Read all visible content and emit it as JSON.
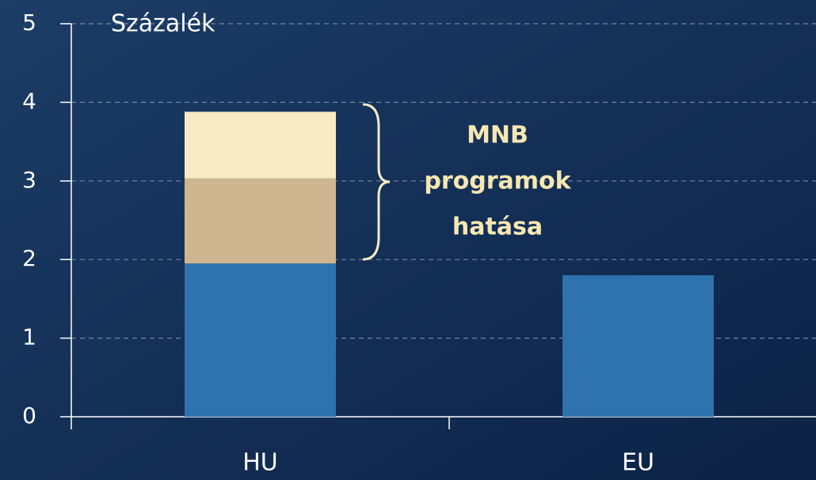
{
  "chart_data": {
    "type": "stacked_bar",
    "y_label": "Százalék",
    "categories": [
      "HU",
      "EU"
    ],
    "series": [
      {
        "color": "#2e73ad",
        "values": [
          1.95,
          1.8
        ]
      },
      {
        "color": "#cdb690",
        "values": [
          1.08,
          null
        ]
      },
      {
        "color": "#f6ebc4",
        "values": [
          0.85,
          null
        ]
      }
    ],
    "annotation": [
      "MNB",
      "programok",
      "hatása"
    ],
    "ylim": [
      0,
      5
    ],
    "yticks": [
      0,
      1,
      2,
      3,
      4,
      5
    ],
    "grid": true
  }
}
